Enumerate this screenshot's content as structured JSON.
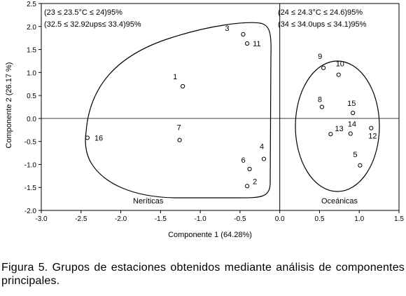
{
  "chart_data": {
    "type": "scatter",
    "xlabel": "Componente 1 (64.28%)",
    "ylabel": "Componente 2 (26.17 %)",
    "xlim": [
      -3.0,
      1.5
    ],
    "ylim": [
      -2.0,
      2.5
    ],
    "x_ticks": [
      "-3.0",
      "-2.5",
      "-2.0",
      "-1.5",
      "-1.0",
      "-0.5",
      "0.0",
      "0.5",
      "1.0",
      "1.5"
    ],
    "y_ticks": [
      "2.5",
      "2.0",
      "1.5",
      "1.0",
      "0.5",
      "0.0",
      "-0.5",
      "-1.0",
      "-1.5",
      "-2.0"
    ],
    "y_tick_values": [
      2.5,
      2.0,
      1.5,
      1.0,
      0.5,
      0.0,
      -0.5,
      -1.0,
      -1.5,
      -2.0
    ],
    "y_tick_positions": [
      -2.0,
      -1.5,
      -1.0,
      -0.5,
      0.0,
      0.5,
      1.0,
      1.5,
      2.0,
      2.5
    ],
    "points": [
      {
        "label": "1",
        "x": -1.22,
        "y": 0.7
      },
      {
        "label": "2",
        "x": -0.41,
        "y": -1.47
      },
      {
        "label": "3",
        "x": -0.46,
        "y": 1.83
      },
      {
        "label": "4",
        "x": -0.2,
        "y": -0.88
      },
      {
        "label": "5",
        "x": 1.01,
        "y": -1.02
      },
      {
        "label": "6",
        "x": -0.38,
        "y": -1.1
      },
      {
        "label": "7",
        "x": -1.26,
        "y": -0.47
      },
      {
        "label": "8",
        "x": 0.53,
        "y": 0.25
      },
      {
        "label": "9",
        "x": 0.55,
        "y": 1.1
      },
      {
        "label": "10",
        "x": 0.74,
        "y": 0.95
      },
      {
        "label": "11",
        "x": -0.41,
        "y": 1.63
      },
      {
        "label": "12",
        "x": 1.15,
        "y": -0.21
      },
      {
        "label": "13",
        "x": 0.64,
        "y": -0.34
      },
      {
        "label": "14",
        "x": 0.89,
        "y": -0.33
      },
      {
        "label": "15",
        "x": 0.92,
        "y": 0.12
      },
      {
        "label": "16",
        "x": -2.42,
        "y": -0.42
      }
    ],
    "annotations": [
      "(23 ≤ 23.5°C ≤ 24)95%",
      "(32.5 ≤ 32.92ups≤ 33.4)95%",
      "(24 ≤ 24.3°C ≤ 24.6)95%",
      "(34 ≤ 34.0ups ≤ 34.1)95%"
    ],
    "groups": [
      "Neríticas",
      "Oceánicas"
    ],
    "reference_lines": {
      "x": 0.0,
      "y": 0.0
    },
    "grid": false
  },
  "caption": "Figura 5. Grupos de estaciones obtenidos mediante análisis de componentes principales."
}
